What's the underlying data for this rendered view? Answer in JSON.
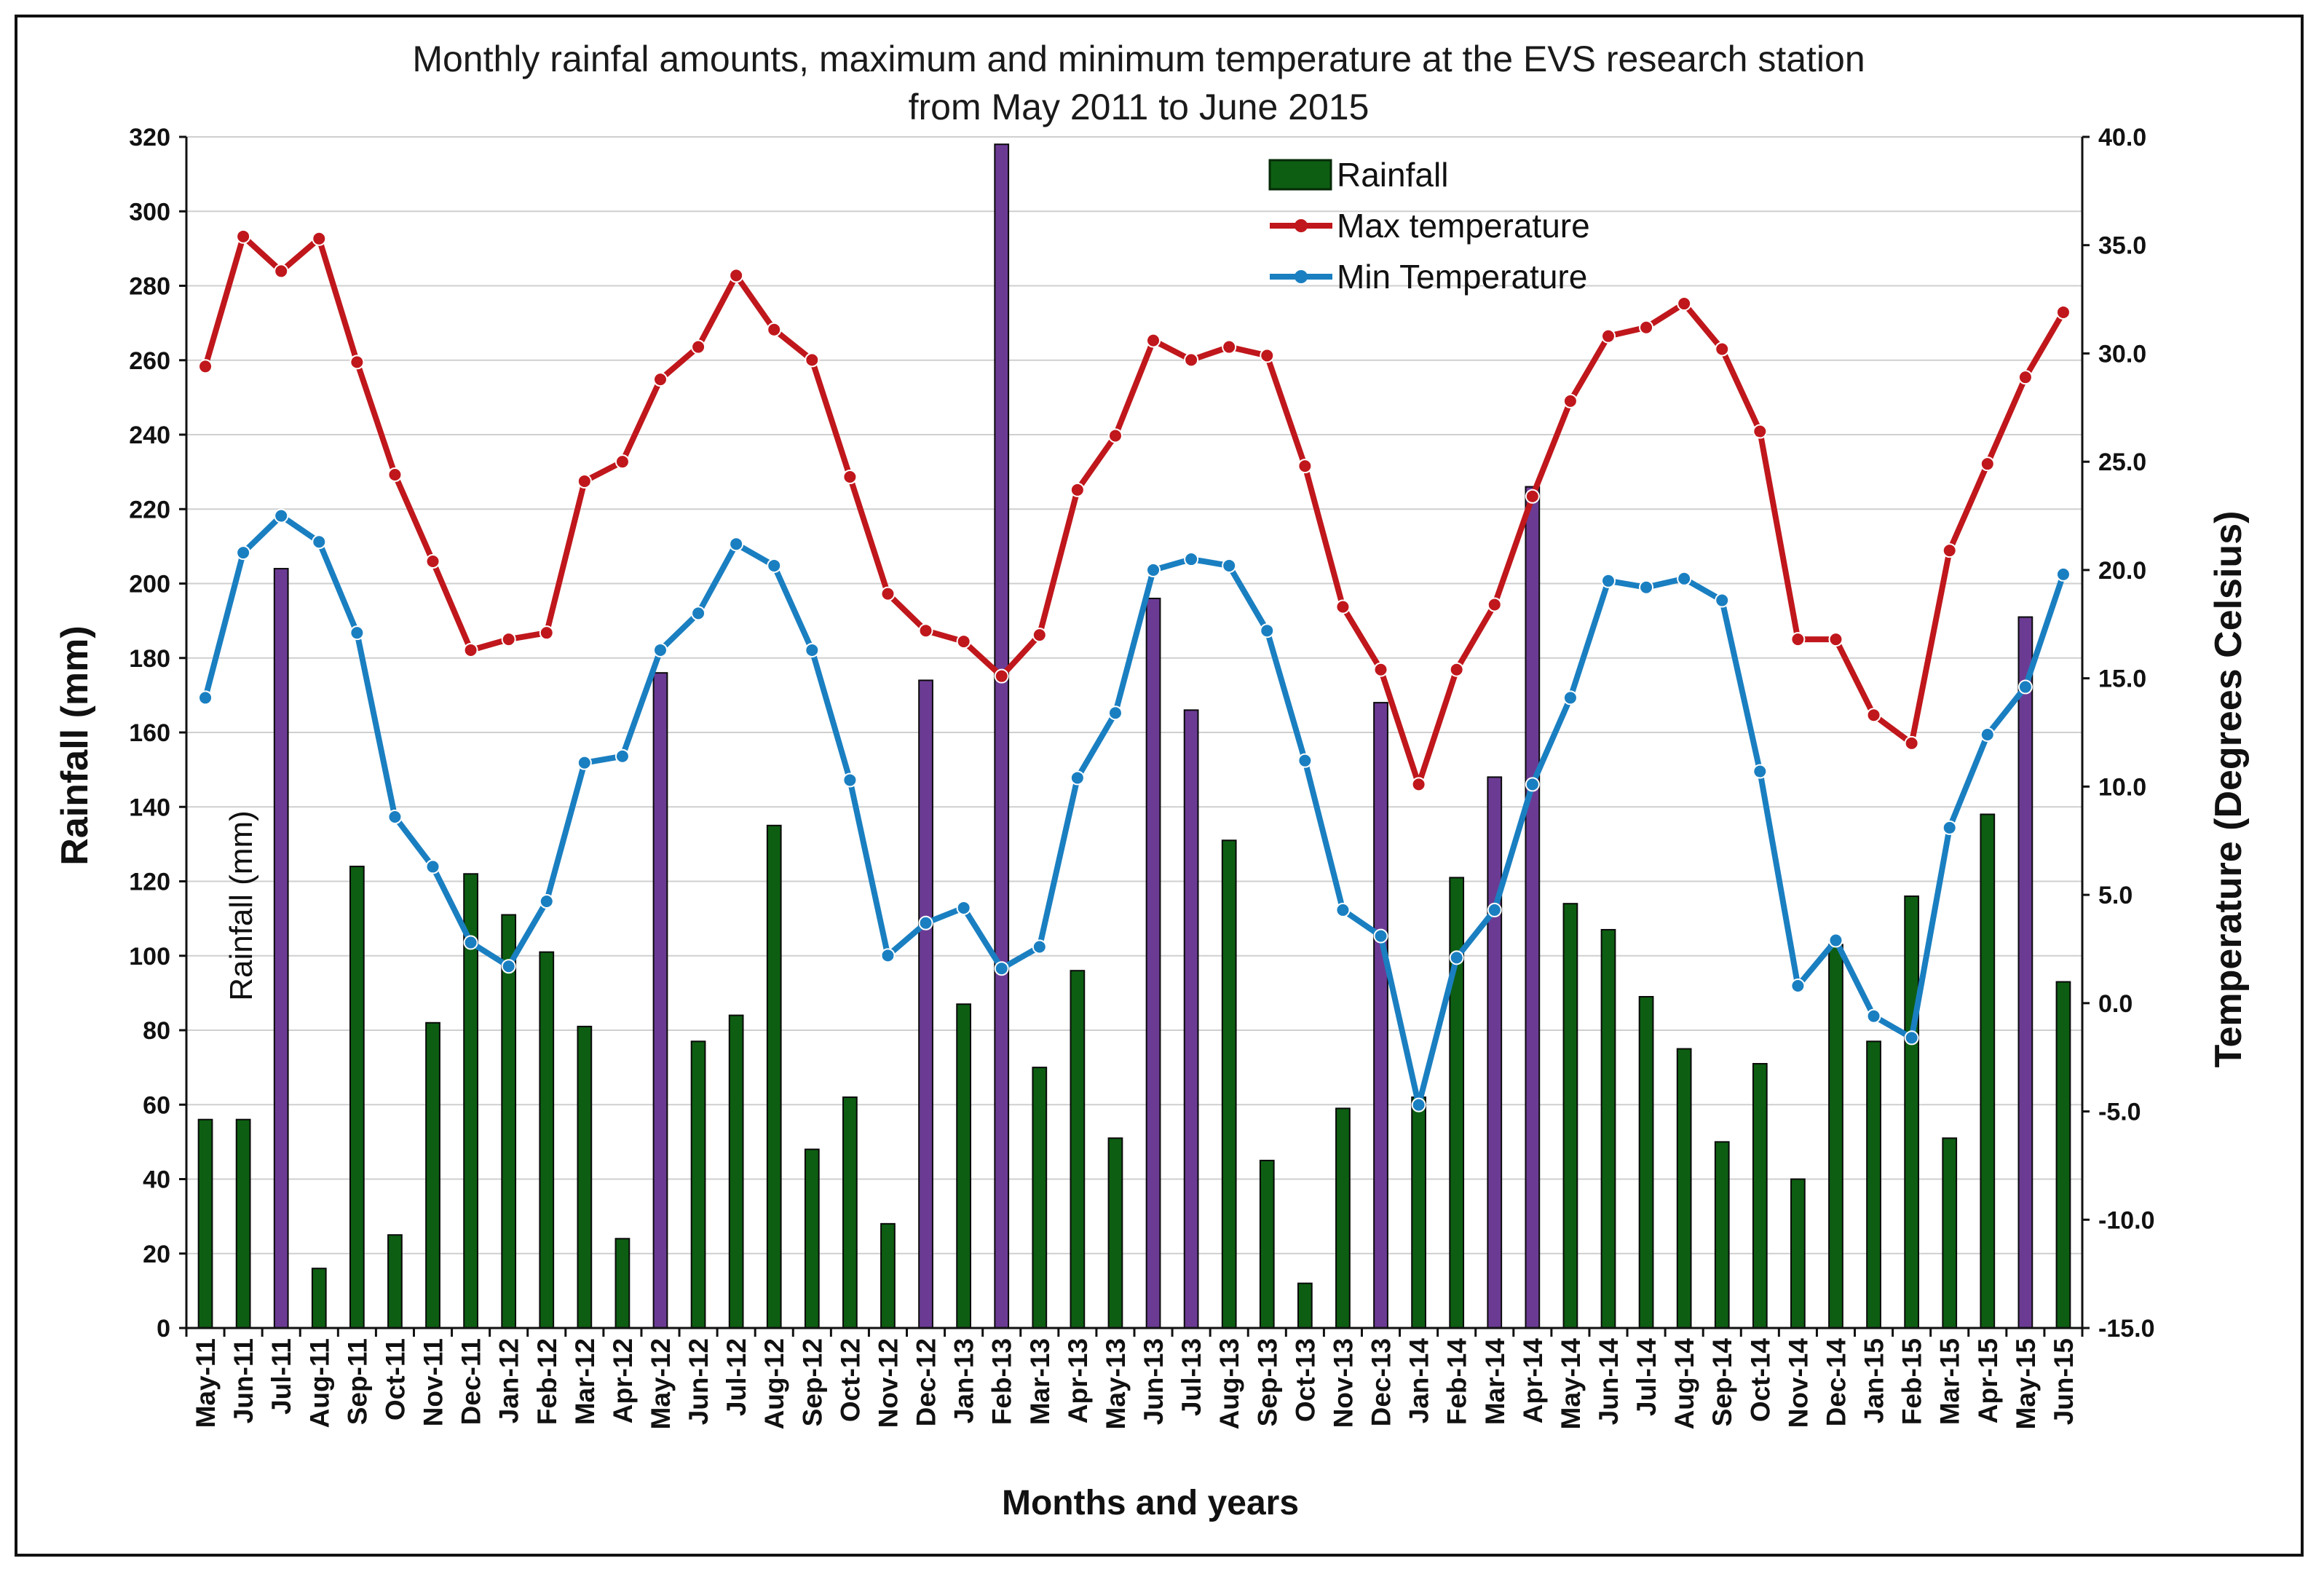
{
  "chart_data": {
    "type": "bar+line",
    "title": "Monthly rainfal amounts, maximum and minimum temperature at the EVS research station",
    "subtitle": "from May 2011 to June 2015",
    "xlabel": "Months and years",
    "ylabel": "Rainfall  (mm)",
    "y2label": "Temperature   (Degrees Celsius)",
    "annotation": "Rainfall (mm)",
    "ylim": [
      0,
      320
    ],
    "y2lim": [
      -15,
      40
    ],
    "yticks": [
      0,
      20,
      40,
      60,
      80,
      100,
      120,
      140,
      160,
      180,
      200,
      220,
      240,
      260,
      280,
      300,
      320
    ],
    "y2ticks": [
      "-15.0",
      "-10.0",
      "-5.0",
      "0.0",
      "5.0",
      "10.0",
      "15.0",
      "20.0",
      "25.0",
      "30.0",
      "35.0",
      "40.0"
    ],
    "categories": [
      "May-11",
      "Jun-11",
      "Jul-11",
      "Aug-11",
      "Sep-11",
      "Oct-11",
      "Nov-11",
      "Dec-11",
      "Jan-12",
      "Feb-12",
      "Mar-12",
      "Apr-12",
      "May-12",
      "Jun-12",
      "Jul-12",
      "Aug-12",
      "Sep-12",
      "Oct-12",
      "Nov-12",
      "Dec-12",
      "Jan-13",
      "Feb-13",
      "Mar-13",
      "Apr-13",
      "May-13",
      "Jun-13",
      "Jul-13",
      "Aug-13",
      "Sep-13",
      "Oct-13",
      "Nov-13",
      "Dec-13",
      "Jan-14",
      "Feb-14",
      "Mar-14",
      "Apr-14",
      "May-14",
      "Jun-14",
      "Jul-14",
      "Aug-14",
      "Sep-14",
      "Oct-14",
      "Nov-14",
      "Dec-14",
      "Jan-15",
      "Feb-15",
      "Mar-15",
      "Apr-15",
      "May-15",
      "Jun-15"
    ],
    "legend": [
      "Rainfall",
      "Max temperature",
      "Min Temperature"
    ],
    "legend_position": "top-center",
    "series": [
      {
        "name": "Rainfall",
        "type": "bar",
        "axis": "left",
        "color": "#0d5e12",
        "highlight_color": "#6b3b94",
        "values": [
          56,
          56,
          204,
          16,
          124,
          25,
          82,
          122,
          111,
          101,
          81,
          24,
          176,
          77,
          84,
          135,
          48,
          62,
          28,
          174,
          87,
          318,
          70,
          96,
          51,
          196,
          166,
          131,
          45,
          12,
          59,
          168,
          62,
          121,
          148,
          226,
          114,
          107,
          89,
          75,
          50,
          71,
          40,
          103,
          77,
          116,
          51,
          138,
          191,
          93
        ],
        "highlighted": [
          false,
          false,
          true,
          false,
          false,
          false,
          false,
          false,
          false,
          false,
          false,
          false,
          true,
          false,
          false,
          false,
          false,
          false,
          false,
          true,
          false,
          true,
          false,
          false,
          false,
          true,
          true,
          false,
          false,
          false,
          false,
          true,
          false,
          false,
          true,
          true,
          false,
          false,
          false,
          false,
          false,
          false,
          false,
          false,
          false,
          false,
          false,
          false,
          true,
          false
        ]
      },
      {
        "name": "Max temperature",
        "type": "line",
        "axis": "right",
        "color": "#c0171c",
        "values": [
          29.4,
          35.4,
          33.8,
          35.3,
          29.6,
          24.4,
          20.4,
          16.3,
          16.8,
          17.1,
          24.1,
          25.0,
          28.8,
          30.3,
          33.6,
          31.1,
          29.7,
          24.3,
          18.9,
          17.2,
          16.7,
          15.1,
          17.0,
          23.7,
          26.2,
          30.6,
          29.7,
          30.3,
          29.9,
          24.8,
          18.3,
          15.4,
          10.1,
          15.4,
          18.4,
          23.4,
          27.8,
          30.8,
          31.2,
          32.3,
          30.2,
          26.4,
          16.8,
          16.8,
          13.3,
          12.0,
          20.9,
          24.9,
          28.9,
          31.9
        ]
      },
      {
        "name": "Min Temperature",
        "type": "line",
        "axis": "right",
        "color": "#1a7fc1",
        "values": [
          14.1,
          20.8,
          22.5,
          21.3,
          17.1,
          8.6,
          6.3,
          2.8,
          1.7,
          4.7,
          11.1,
          11.4,
          16.3,
          18.0,
          21.2,
          20.2,
          16.3,
          10.3,
          2.2,
          3.7,
          4.4,
          1.6,
          2.6,
          10.4,
          13.4,
          20.0,
          20.5,
          20.2,
          17.2,
          11.2,
          4.3,
          3.1,
          -4.7,
          2.1,
          4.3,
          10.1,
          14.1,
          19.5,
          19.2,
          19.6,
          18.6,
          10.7,
          0.8,
          2.9,
          -0.6,
          -1.6,
          8.1,
          12.4,
          14.6,
          19.8
        ]
      }
    ]
  }
}
